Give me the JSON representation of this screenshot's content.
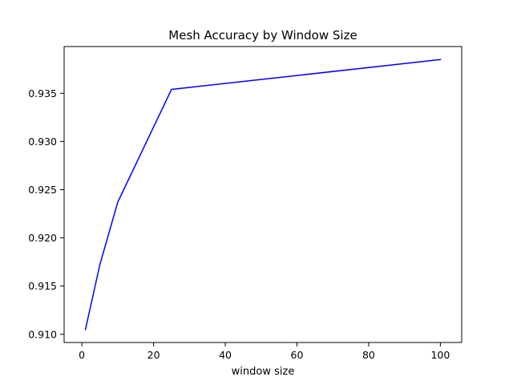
{
  "chart_data": {
    "type": "line",
    "title": "Mesh Accuracy by Window Size",
    "xlabel": "window size",
    "ylabel": "",
    "xlim": [
      -4.95,
      105.95
    ],
    "ylim": [
      0.90915,
      0.93985
    ],
    "x_ticks": [
      0,
      20,
      40,
      60,
      80,
      100
    ],
    "y_ticks": [
      0.91,
      0.915,
      0.92,
      0.925,
      0.93,
      0.935
    ],
    "x_tick_labels": [
      "0",
      "20",
      "40",
      "60",
      "80",
      "100"
    ],
    "y_tick_labels": [
      "0.910",
      "0.915",
      "0.920",
      "0.925",
      "0.930",
      "0.935"
    ],
    "grid": false,
    "legend": "none",
    "series": [
      {
        "color": "#0000ff",
        "x": [
          1,
          5,
          10,
          25,
          100
        ],
        "values": [
          0.9105,
          0.9172,
          0.9237,
          0.9354,
          0.9385
        ]
      }
    ]
  }
}
